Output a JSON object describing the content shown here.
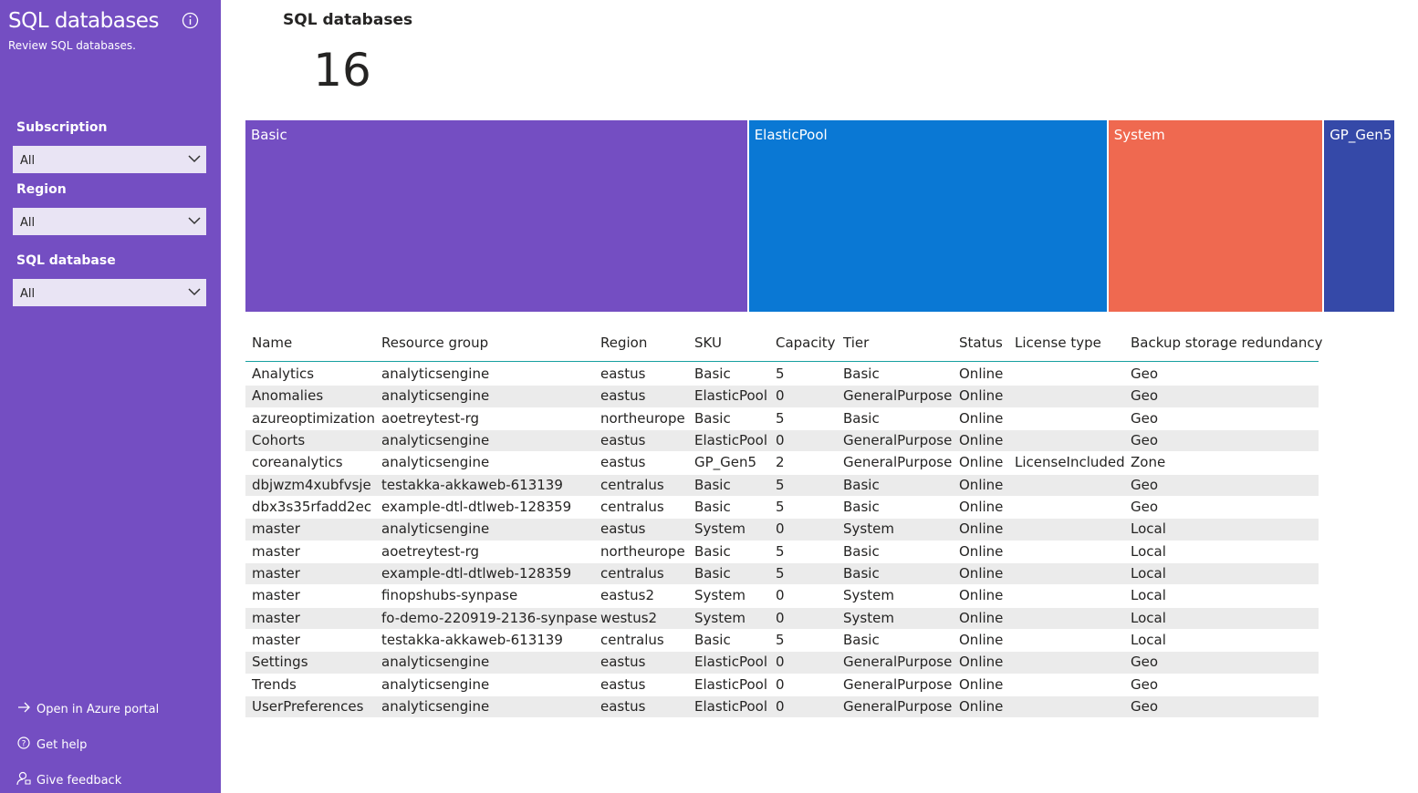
{
  "sidebar": {
    "title": "SQL databases",
    "subtitle": "Review SQL databases.",
    "filters": [
      {
        "label": "Subscription",
        "value": "All"
      },
      {
        "label": "Region",
        "value": "All"
      },
      {
        "label": "SQL database",
        "value": "All"
      }
    ],
    "links": [
      "Open in Azure portal",
      "Get help",
      "Give feedback"
    ]
  },
  "card": {
    "title": "SQL databases",
    "value": 16
  },
  "chart_data": {
    "type": "treemap",
    "categories": [
      "Basic",
      "ElasticPool",
      "System",
      "GP_Gen5"
    ],
    "values": [
      7,
      5,
      3,
      1
    ],
    "colors": [
      "#744ec2",
      "#0a78d4",
      "#ef6950",
      "#3549a8"
    ]
  },
  "table": {
    "columns": [
      "Name",
      "Resource group",
      "Region",
      "SKU",
      "Capacity",
      "Tier",
      "Status",
      "License type",
      "Backup storage redundancy"
    ],
    "rows": [
      [
        "Analytics",
        "analyticsengine",
        "eastus",
        "Basic",
        5,
        "Basic",
        "Online",
        null,
        "Geo"
      ],
      [
        "Anomalies",
        "analyticsengine",
        "eastus",
        "ElasticPool",
        0,
        "GeneralPurpose",
        "Online",
        null,
        "Geo"
      ],
      [
        "azureoptimization",
        "aoetreytest-rg",
        "northeurope",
        "Basic",
        5,
        "Basic",
        "Online",
        null,
        "Geo"
      ],
      [
        "Cohorts",
        "analyticsengine",
        "eastus",
        "ElasticPool",
        0,
        "GeneralPurpose",
        "Online",
        null,
        "Geo"
      ],
      [
        "coreanalytics",
        "analyticsengine",
        "eastus",
        "GP_Gen5",
        2,
        "GeneralPurpose",
        "Online",
        "LicenseIncluded",
        "Zone"
      ],
      [
        "dbjwzm4xubfvsje",
        "testakka-akkaweb-613139",
        "centralus",
        "Basic",
        5,
        "Basic",
        "Online",
        null,
        "Geo"
      ],
      [
        "dbx3s35rfadd2ec",
        "example-dtl-dtlweb-128359",
        "centralus",
        "Basic",
        5,
        "Basic",
        "Online",
        null,
        "Geo"
      ],
      [
        "master",
        "analyticsengine",
        "eastus",
        "System",
        0,
        "System",
        "Online",
        null,
        "Local"
      ],
      [
        "master",
        "aoetreytest-rg",
        "northeurope",
        "Basic",
        5,
        "Basic",
        "Online",
        null,
        "Local"
      ],
      [
        "master",
        "example-dtl-dtlweb-128359",
        "centralus",
        "Basic",
        5,
        "Basic",
        "Online",
        null,
        "Local"
      ],
      [
        "master",
        "finopshubs-synpase",
        "eastus2",
        "System",
        0,
        "System",
        "Online",
        null,
        "Local"
      ],
      [
        "master",
        "fo-demo-220919-2136-synpase",
        "westus2",
        "System",
        0,
        "System",
        "Online",
        null,
        "Local"
      ],
      [
        "master",
        "testakka-akkaweb-613139",
        "centralus",
        "Basic",
        5,
        "Basic",
        "Online",
        null,
        "Local"
      ],
      [
        "Settings",
        "analyticsengine",
        "eastus",
        "ElasticPool",
        0,
        "GeneralPurpose",
        "Online",
        null,
        "Geo"
      ],
      [
        "Trends",
        "analyticsengine",
        "eastus",
        "ElasticPool",
        0,
        "GeneralPurpose",
        "Online",
        null,
        "Geo"
      ],
      [
        "UserPreferences",
        "analyticsengine",
        "eastus",
        "ElasticPool",
        0,
        "GeneralPurpose",
        "Online",
        null,
        "Geo"
      ]
    ]
  }
}
